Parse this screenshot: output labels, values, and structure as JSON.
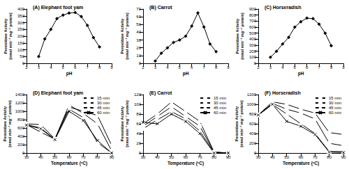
{
  "chart_data": [
    {
      "type": "line",
      "title": "(A) Elephant foot yam",
      "x_label": "pH",
      "y_label": "Peroxidase Activity\n(nmol min⁻¹ mg⁻¹ protein)",
      "x": [
        3,
        3.5,
        4,
        4.5,
        5,
        5.5,
        6,
        6.5,
        7,
        7.5,
        8
      ],
      "values": [
        50,
        180,
        250,
        330,
        355,
        370,
        375,
        345,
        280,
        190,
        120
      ],
      "color": "#000000",
      "marker": "diamond",
      "xlim": [
        2,
        9
      ],
      "xticks": [
        2,
        3,
        4,
        5,
        6,
        7,
        8,
        9
      ],
      "ylim": [
        0,
        400
      ],
      "yticks": [
        0,
        50,
        100,
        150,
        200,
        250,
        300,
        350,
        400
      ],
      "grid": false
    },
    {
      "type": "line",
      "title": "(B) Carrot",
      "x_label": "pH",
      "y_label": "Peroxidase Activity\n(nmol min⁻¹ mg⁻¹ protein)",
      "x": [
        3,
        3.5,
        4,
        4.5,
        5,
        5.5,
        6,
        6.5,
        7,
        7.5,
        8
      ],
      "values": [
        3,
        13,
        20,
        27,
        30,
        35,
        48,
        65,
        47,
        25,
        15
      ],
      "color": "#000000",
      "marker": "diamond",
      "xlim": [
        2,
        9
      ],
      "xticks": [
        2,
        3,
        4,
        5,
        6,
        7,
        8,
        9
      ],
      "ylim": [
        0,
        70
      ],
      "yticks": [
        0,
        10,
        20,
        30,
        40,
        50,
        60,
        70
      ],
      "grid": false
    },
    {
      "type": "line",
      "title": "(C) Horseradish",
      "x_label": "pH",
      "y_label": "Peroxidase Activity\n(nmol min⁻¹ mg⁻¹ protein)",
      "x": [
        3,
        3.5,
        4,
        4.5,
        5,
        5.5,
        6,
        6.5,
        7,
        7.5,
        8
      ],
      "values": [
        100,
        200,
        320,
        430,
        600,
        690,
        750,
        740,
        650,
        500,
        290
      ],
      "color": "#000000",
      "marker": "diamond",
      "xlim": [
        2,
        9
      ],
      "xticks": [
        2,
        3,
        4,
        5,
        6,
        7,
        8,
        9
      ],
      "ylim": [
        0,
        900
      ],
      "yticks": [
        0,
        100,
        200,
        300,
        400,
        500,
        600,
        700,
        800,
        900
      ],
      "grid": false
    },
    {
      "type": "line",
      "title": "(D) Elephant foot yam",
      "x_label": "Temperature (ºC)",
      "y_label": "Peroxidase Activity\n(nmol min⁻¹ mg⁻¹ protein)",
      "x": [
        30,
        40,
        50,
        60,
        70,
        80,
        90
      ],
      "series": [
        {
          "name": "15 min",
          "color": "#000000",
          "marker": "circle",
          "values": [
            700,
            680,
            340,
            1100,
            1000,
            900,
            180
          ]
        },
        {
          "name": "30 min",
          "color": "#000000",
          "marker": "square",
          "values": [
            680,
            600,
            330,
            1150,
            950,
            700,
            50
          ]
        },
        {
          "name": "45 min",
          "color": "#000000",
          "marker": "triangle",
          "values": [
            680,
            500,
            330,
            1050,
            850,
            250,
            0
          ]
        },
        {
          "name": "60 min",
          "color": "#000000",
          "marker": "x",
          "values": [
            670,
            580,
            320,
            1000,
            780,
            300,
            0
          ]
        }
      ],
      "legend": "upper right",
      "xlim": [
        30,
        90
      ],
      "xticks": [
        30,
        40,
        50,
        60,
        70,
        80,
        90
      ],
      "ylim": [
        0,
        1400
      ],
      "yticks": [
        0,
        200,
        400,
        600,
        800,
        1000,
        1200,
        1400
      ],
      "grid": false
    },
    {
      "type": "line",
      "title": "(E) Carrot",
      "x_label": "Temperature (ºC)",
      "y_label": "Peroxidase Activity\n(nmol min⁻¹ mg⁻¹ protein)",
      "x": [
        30,
        40,
        50,
        60,
        70,
        80,
        90
      ],
      "series": [
        {
          "name": "15 min",
          "color": "#000000",
          "marker": "circle",
          "values": [
            60,
            80,
            105,
            85,
            65,
            2,
            0
          ]
        },
        {
          "name": "30 min",
          "color": "#000000",
          "marker": "square",
          "values": [
            55,
            75,
            95,
            75,
            55,
            2,
            0
          ]
        },
        {
          "name": "45 min",
          "color": "#000000",
          "marker": "triangle",
          "values": [
            50,
            68,
            85,
            70,
            45,
            1,
            0
          ]
        },
        {
          "name": "60 min",
          "color": "#000000",
          "marker": "x",
          "values": [
            63,
            60,
            80,
            65,
            40,
            0,
            0
          ]
        }
      ],
      "legend": "upper right",
      "xlim": [
        30,
        90
      ],
      "xticks": [
        30,
        40,
        50,
        60,
        70,
        80,
        90
      ],
      "ylim": [
        0,
        120
      ],
      "yticks": [
        0,
        20,
        40,
        60,
        80,
        100,
        120
      ],
      "grid": false
    },
    {
      "type": "line",
      "title": "(F) Horseradish",
      "x_label": "Temperature (ºC)",
      "y_label": "Peroxidase Activity\n(nmol min⁻¹ mg⁻¹ protein)",
      "x": [
        30,
        40,
        50,
        60,
        70,
        80,
        90
      ],
      "series": [
        {
          "name": "15 min",
          "color": "#000000",
          "marker": "circle",
          "values": [
            780,
            1050,
            1000,
            900,
            820,
            420,
            380
          ]
        },
        {
          "name": "30 min",
          "color": "#000000",
          "marker": "square",
          "values": [
            780,
            1020,
            900,
            820,
            700,
            200,
            150
          ]
        },
        {
          "name": "45 min",
          "color": "#000000",
          "marker": "triangle",
          "values": [
            780,
            1000,
            800,
            600,
            400,
            30,
            30
          ]
        },
        {
          "name": "60 min",
          "color": "#000000",
          "marker": "x",
          "values": [
            780,
            1000,
            650,
            550,
            380,
            20,
            10
          ]
        }
      ],
      "legend": "upper right",
      "xlim": [
        30,
        90
      ],
      "xticks": [
        30,
        40,
        50,
        60,
        70,
        80,
        90
      ],
      "ylim": [
        0,
        1200
      ],
      "yticks": [
        0,
        200,
        400,
        600,
        800,
        1000,
        1200
      ],
      "grid": false
    }
  ]
}
